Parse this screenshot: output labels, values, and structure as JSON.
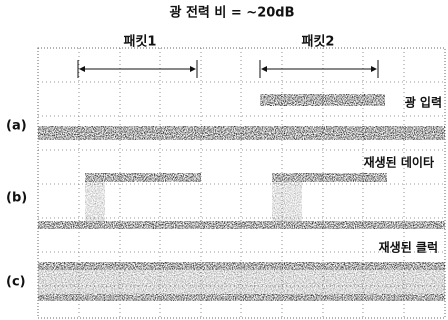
{
  "title": "광 전력 비 = ~20dB",
  "packets": [
    "패킷1",
    "패킷2"
  ],
  "panels": [
    {
      "tag": "(a)",
      "label": "광 입력"
    },
    {
      "tag": "(b)",
      "label": "재생된 데이타"
    },
    {
      "tag": "(c)",
      "label": "재생된 클럭"
    }
  ]
}
